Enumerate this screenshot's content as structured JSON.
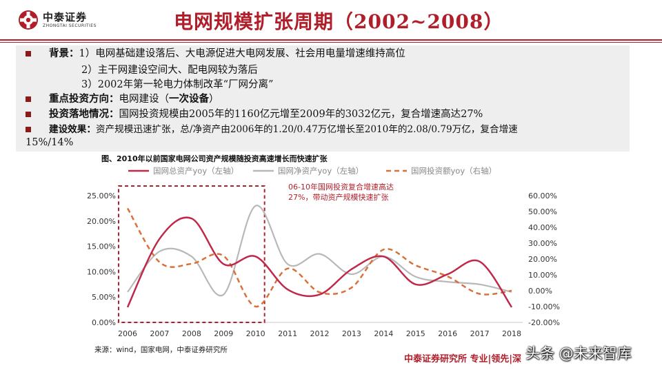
{
  "header": {
    "logo_cn": "中泰证券",
    "logo_en": "ZHONGTAI SECURITIES",
    "title": "电网规模扩张周期（2002~2008）"
  },
  "bullets": {
    "b1_label": "背景：",
    "b1_text": "1）电网基础建设落后、大电源促进大电网发展、社会用电量增速维持高位",
    "b1_sub2": "2）主干网建设空间大、配电网较为落后",
    "b1_sub3": "3）2002年第一轮电力体制改革“厂网分离”",
    "b2_label": "重点投资方向：",
    "b2_text": "电网建设（",
    "b2_bold": "一次设备",
    "b2_end": "）",
    "b3_label": "投资落地情况：",
    "b3_text": "国网投资规模由2005年的1160亿元增至2009年的3032亿元，复合增速高达27%",
    "b4_label": "建设效果：",
    "b4_text": "资产规模迅速扩张，总/净资产由2006年的1.20/0.47万亿增长至2010年的2.08/0.79万亿，复合增速",
    "b4_text2": "15%/14%"
  },
  "figure": {
    "title": "图、2010年以前国家电网公司资产规模随投资高速增长而快速扩张",
    "source": "来源：wind，国家电网，中泰证券研究所"
  },
  "footer": {
    "brand": "中泰证券研究所 专业|领先|深",
    "watermark": "头条 @未来智库"
  },
  "colors": {
    "brand_red": "#b01e2a",
    "total_assets": "#c0284a",
    "net_assets": "#b8b8b8",
    "investment": "#d9703a"
  },
  "chart_data": {
    "type": "line",
    "categories": [
      "2006",
      "2007",
      "2008",
      "2009",
      "2010",
      "2011",
      "2012",
      "2013",
      "2014",
      "2015",
      "2016",
      "2017",
      "2018"
    ],
    "series": [
      {
        "name": "国网总资产yoy（左轴）",
        "axis": "left",
        "style": "solid",
        "values": [
          3.0,
          16.5,
          20.5,
          11.5,
          13.0,
          6.5,
          5.5,
          10.5,
          13.0,
          7.5,
          9.5,
          12.0,
          3.0
        ]
      },
      {
        "name": "国网净资产yoy（左轴）",
        "axis": "left",
        "style": "solid",
        "values": [
          6.0,
          14.0,
          13.0,
          5.5,
          23.0,
          11.5,
          13.5,
          9.5,
          13.0,
          9.0,
          8.0,
          7.5,
          6.0
        ]
      },
      {
        "name": "国网投资额yoy（右轴）",
        "axis": "right",
        "style": "dashed",
        "values": [
          52.0,
          18.0,
          17.0,
          22.0,
          -10.0,
          14.0,
          -1.0,
          2.0,
          26.0,
          16.0,
          9.0,
          -2.0,
          0.0
        ]
      }
    ],
    "left_axis": {
      "min": 0,
      "max": 25,
      "step": 5,
      "tick_labels": [
        "0.00%",
        "5.00%",
        "10.00%",
        "15.00%",
        "20.00%",
        "25.00%"
      ]
    },
    "right_axis": {
      "min": -20,
      "max": 60,
      "step": 10,
      "tick_labels": [
        "-20.00%",
        "-10.00%",
        "0.00%",
        "10.00%",
        "20.00%",
        "30.00%",
        "40.00%",
        "50.00%",
        "60.00%"
      ]
    },
    "annotation": "06-10年国网投资复合增速高达27%，带动资产规模快速扩张",
    "highlight": {
      "from": "2006",
      "to": "2010"
    },
    "legend_position": "top",
    "grid": false
  }
}
